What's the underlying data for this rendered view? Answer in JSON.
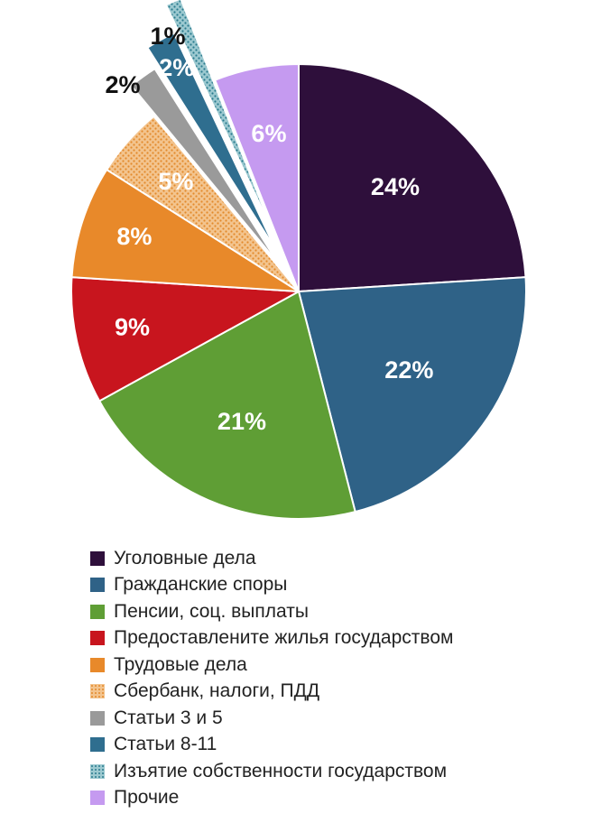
{
  "chart_data": {
    "type": "pie",
    "title": "",
    "slices": [
      {
        "label": "Уголовные дела",
        "value": 24,
        "display": "24%",
        "color": "#2e0f3b",
        "pattern": "solid"
      },
      {
        "label": "Гражданские споры",
        "value": 22,
        "display": "22%",
        "color": "#2f6287",
        "pattern": "solid"
      },
      {
        "label": "Пенсии, соц. выплаты",
        "value": 21,
        "display": "21%",
        "color": "#5f9e35",
        "pattern": "solid"
      },
      {
        "label": "Предоставлените жилья государством",
        "value": 9,
        "display": "9%",
        "color": "#c8151e",
        "pattern": "solid"
      },
      {
        "label": "Трудовые дела",
        "value": 8,
        "display": "8%",
        "color": "#e8892a",
        "pattern": "solid"
      },
      {
        "label": "Сбербанк, налоги, ПДД",
        "value": 5,
        "display": "5%",
        "color": "#f0b068",
        "pattern": "dots"
      },
      {
        "label": "Статьи 3 и 5",
        "value": 2,
        "display": "2%",
        "color": "#9a9a9a",
        "pattern": "solid",
        "exploded": true,
        "label_outside": true
      },
      {
        "label": "Статьи 8-11",
        "value": 2,
        "display": "2%",
        "color": "#2f6e8f",
        "pattern": "solid",
        "exploded": true
      },
      {
        "label": "Изъятие собственности государством",
        "value": 1,
        "display": "1%",
        "color": "#3a8a9a",
        "pattern": "dots",
        "exploded": true,
        "label_outside": true
      },
      {
        "label": "Прочие",
        "value": 6,
        "display": "6%",
        "color": "#c59af0",
        "pattern": "solid"
      }
    ],
    "legend_position": "bottom"
  }
}
